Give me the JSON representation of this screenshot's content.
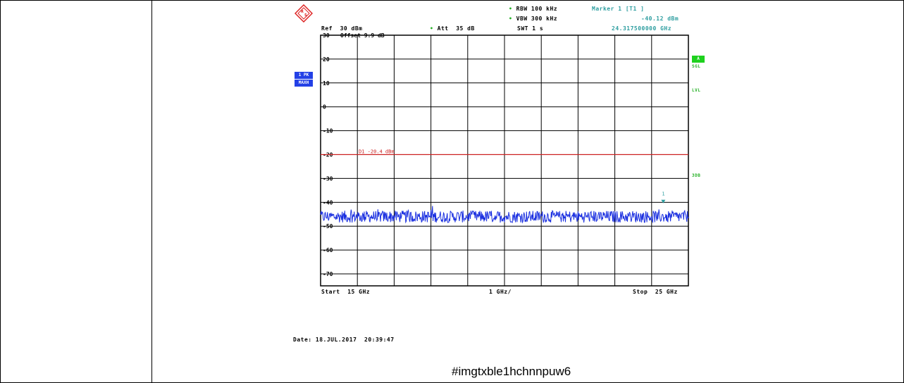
{
  "header": {
    "rbw": "RBW 100 kHz",
    "vbw": "VBW 300 kHz",
    "swt": "SWT 1 s",
    "ref": "Ref  30 dBm",
    "att": "Att  35 dB",
    "marker_title": "Marker 1 [T1 ]",
    "marker_level": "-40.12 dBm",
    "marker_freq": "24.317500000 GHz",
    "offset": "Offset   9.9 dB"
  },
  "left_badges": {
    "trace": "1 PK",
    "mode": "MAXH"
  },
  "right_labels": {
    "box": "A",
    "sgl": "SGL",
    "lvl": "LVL",
    "db": "3DB"
  },
  "footer": {
    "start": "Start  15 GHz",
    "span_div": "1 GHz/",
    "stop": "Stop  25 GHz",
    "date": "Date: 18.JUL.2017  20:39:47"
  },
  "caption": "#imgtxble1hchnnpuw6",
  "colors": {
    "trace": "#1a2fe0",
    "limit_line": "#cc2222",
    "teal": "#2e9ea0",
    "green": "#27b127"
  },
  "chart_data": {
    "type": "line",
    "xlim": [
      15,
      25
    ],
    "xunit": "GHz",
    "ylim": [
      -75,
      30
    ],
    "yunit": "dBm",
    "yticks": [
      30,
      20,
      10,
      0,
      -10,
      -20,
      -30,
      -40,
      -50,
      -60,
      -70
    ],
    "ytick_labels": [
      "30",
      "20",
      "10",
      "0",
      "-10",
      "-20",
      "-30",
      "-40",
      "-50",
      "-60",
      "-70"
    ],
    "grid": true,
    "series": [
      {
        "noise_floor_dbm": -46,
        "noise_band_dbm": [
          -48,
          -43
        ]
      }
    ],
    "limit_line": {
      "label": "D1 -20.4 dBm",
      "value": -20
    },
    "markers": [
      {
        "label": "1",
        "x": 24.3175,
        "y": -40.12
      }
    ]
  }
}
